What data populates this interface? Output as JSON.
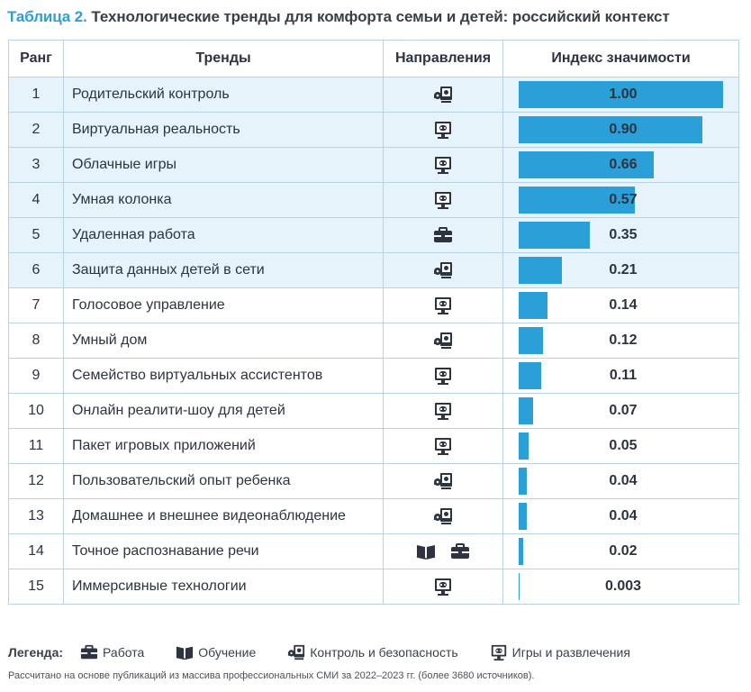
{
  "title": {
    "prefix": "Таблица 2.",
    "text": "Технологические тренды для комфорта семьи и детей: российский контекст"
  },
  "headers": {
    "rank": "Ранг",
    "trend": "Тренды",
    "directions": "Направления",
    "index": "Индекс значимости"
  },
  "colors": {
    "accent": "#2a9fd8",
    "highlight_row": "#e6f3fa",
    "border": "#b9d3e3"
  },
  "index_max": 1.0,
  "rows": [
    {
      "rank": "1",
      "trend": "Родительский контроль",
      "directions": [
        "control-security-icon"
      ],
      "value": 1.0,
      "value_label": "1.00",
      "highlight": true
    },
    {
      "rank": "2",
      "trend": "Виртуальная реальность",
      "directions": [
        "games-entertainment-icon"
      ],
      "value": 0.9,
      "value_label": "0.90",
      "highlight": true
    },
    {
      "rank": "3",
      "trend": "Облачные игры",
      "directions": [
        "games-entertainment-icon"
      ],
      "value": 0.66,
      "value_label": "0.66",
      "highlight": true
    },
    {
      "rank": "4",
      "trend": "Умная колонка",
      "directions": [
        "games-entertainment-icon"
      ],
      "value": 0.57,
      "value_label": "0.57",
      "highlight": true
    },
    {
      "rank": "5",
      "trend": "Удаленная работа",
      "directions": [
        "work-icon"
      ],
      "value": 0.35,
      "value_label": "0.35",
      "highlight": true
    },
    {
      "rank": "6",
      "trend": "Защита данных детей в сети",
      "directions": [
        "control-security-icon"
      ],
      "value": 0.21,
      "value_label": "0.21",
      "highlight": true
    },
    {
      "rank": "7",
      "trend": "Голосовое управление",
      "directions": [
        "games-entertainment-icon"
      ],
      "value": 0.14,
      "value_label": "0.14",
      "highlight": false
    },
    {
      "rank": "8",
      "trend": "Умный дом",
      "directions": [
        "control-security-icon"
      ],
      "value": 0.12,
      "value_label": "0.12",
      "highlight": false
    },
    {
      "rank": "9",
      "trend": "Семейство виртуальных ассистентов",
      "directions": [
        "games-entertainment-icon"
      ],
      "value": 0.11,
      "value_label": "0.11",
      "highlight": false
    },
    {
      "rank": "10",
      "trend": "Онлайн реалити-шоу для детей",
      "directions": [
        "games-entertainment-icon"
      ],
      "value": 0.07,
      "value_label": "0.07",
      "highlight": false
    },
    {
      "rank": "11",
      "trend": "Пакет игровых приложений",
      "directions": [
        "games-entertainment-icon"
      ],
      "value": 0.05,
      "value_label": "0.05",
      "highlight": false
    },
    {
      "rank": "12",
      "trend": "Пользовательский опыт ребенка",
      "directions": [
        "control-security-icon"
      ],
      "value": 0.04,
      "value_label": "0.04",
      "highlight": false
    },
    {
      "rank": "13",
      "trend": "Домашнее и внешнее видеонаблюдение",
      "directions": [
        "control-security-icon"
      ],
      "value": 0.04,
      "value_label": "0.04",
      "highlight": false
    },
    {
      "rank": "14",
      "trend": "Точное распознавание речи",
      "directions": [
        "education-icon",
        "work-icon"
      ],
      "value": 0.02,
      "value_label": "0.02",
      "highlight": false
    },
    {
      "rank": "15",
      "trend": "Иммерсивные технологии",
      "directions": [
        "games-entertainment-icon"
      ],
      "value": 0.003,
      "value_label": "0.003",
      "highlight": false
    }
  ],
  "legend": {
    "label": "Легенда:",
    "items": [
      {
        "icon": "work-icon",
        "label": "Работа"
      },
      {
        "icon": "education-icon",
        "label": "Обучение"
      },
      {
        "icon": "control-security-icon",
        "label": "Контроль и безопасность"
      },
      {
        "icon": "games-entertainment-icon",
        "label": "Игры и развлечения"
      }
    ]
  },
  "footnote": "Рассчитано на основе публикаций из массива профессиональных СМИ за 2022–2023 гг. (более 3680 источников)."
}
